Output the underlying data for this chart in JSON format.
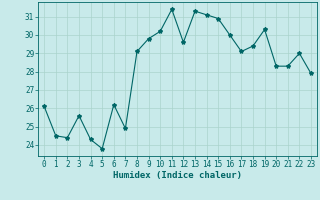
{
  "x": [
    0,
    1,
    2,
    3,
    4,
    5,
    6,
    7,
    8,
    9,
    10,
    11,
    12,
    13,
    14,
    15,
    16,
    17,
    18,
    19,
    20,
    21,
    22,
    23
  ],
  "y": [
    26.1,
    24.5,
    24.4,
    25.6,
    24.3,
    23.8,
    26.2,
    24.9,
    29.1,
    29.8,
    30.2,
    31.4,
    29.6,
    31.3,
    31.1,
    30.9,
    30.0,
    29.1,
    29.4,
    30.3,
    28.3,
    28.3,
    29.0,
    27.9
  ],
  "line_color": "#006666",
  "marker": "*",
  "marker_size": 3,
  "bg_color": "#c8eaea",
  "grid_color": "#aad4cc",
  "xlabel": "Humidex (Indice chaleur)",
  "ylabel_ticks": [
    24,
    25,
    26,
    27,
    28,
    29,
    30,
    31
  ],
  "ylim": [
    23.4,
    31.8
  ],
  "xlim": [
    -0.5,
    23.5
  ],
  "tick_color": "#006666",
  "label_color": "#006666",
  "font_size_label": 6.5,
  "font_size_tick": 5.5
}
